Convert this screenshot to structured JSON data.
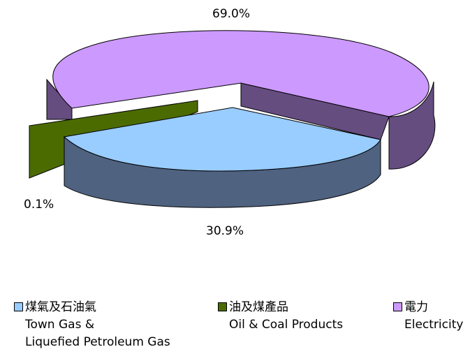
{
  "chart_data": {
    "type": "pie",
    "style": "3d-exploded",
    "slices": [
      {
        "label_zh": "煤氣及石油氣",
        "label_en": [
          "Town Gas &",
          "Liquefied Petroleum Gas"
        ],
        "value": 30.9,
        "value_label": "30.9%",
        "top_color": "#99ccff",
        "side_color": "#4f6280"
      },
      {
        "label_zh": "油及煤產品",
        "label_en": [
          "Oil & Coal Products"
        ],
        "value": 0.1,
        "value_label": "0.1%",
        "top_color": "#4b6b00",
        "side_color": "#4b6b00"
      },
      {
        "label_zh": "電力",
        "label_en": [
          "Electricity"
        ],
        "value": 69.0,
        "value_label": "69.0%",
        "top_color": "#cc99ff",
        "side_color": "#664d80"
      }
    ],
    "legend_position": "bottom"
  }
}
